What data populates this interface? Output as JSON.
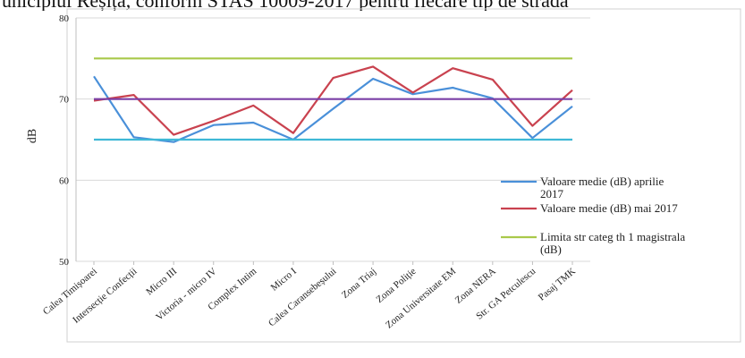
{
  "caption": "unicipiul Reșița, conform STAS 10009-2017 pentru fiecare tip de stradă",
  "chart_data": {
    "type": "line",
    "title": "",
    "xlabel": "",
    "ylabel": "dB",
    "ylim": [
      50,
      80
    ],
    "yticks": [
      "50",
      "60",
      "70",
      "80"
    ],
    "grid": "horizontal",
    "legend_position": "right",
    "categories": [
      "Calea Timișoarei",
      "Intersecție Confecții",
      "Micro III",
      "Victoria - micro IV",
      "Complex Intim",
      "Micro I",
      "Calea Caransebeșului",
      "Zona Triaj",
      "Zona Poliție",
      "Zona Universitate EM",
      "Zona NERA",
      "Str. GA Petculescu",
      "Pasaj TMK"
    ],
    "series": [
      {
        "name": "Valoare medie (dB) aprilie 2017",
        "legend_lines": [
          "Valoare medie (dB) aprilie",
          "2017"
        ],
        "color": "#4a90d9",
        "values": [
          72.8,
          65.3,
          64.7,
          66.8,
          67.1,
          65.0,
          68.8,
          72.5,
          70.6,
          71.4,
          70.1,
          65.2,
          69.1
        ]
      },
      {
        "name": "Valoare medie (dB) mai 2017",
        "legend_lines": [
          "Valoare medie (dB) mai 2017"
        ],
        "color": "#c9424f",
        "values": [
          69.8,
          70.5,
          65.6,
          67.3,
          69.2,
          65.8,
          72.6,
          74.0,
          70.8,
          73.8,
          72.4,
          66.7,
          71.1
        ]
      },
      {
        "name": "Limita str categ th 1 magistrala (dB)",
        "legend_lines": [
          "Limita str categ th 1 magistrala",
          "(dB)"
        ],
        "color": "#a9c94a",
        "values": [
          75,
          75,
          75,
          75,
          75,
          75,
          75,
          75,
          75,
          75,
          75,
          75,
          75
        ]
      },
      {
        "name": "",
        "color": "#7a3fa6",
        "values": [
          70,
          70,
          70,
          70,
          70,
          70,
          70,
          70,
          70,
          70,
          70,
          70,
          70
        ]
      },
      {
        "name": "",
        "color": "#3fb8d6",
        "values": [
          65,
          65,
          65,
          65,
          65,
          65,
          65,
          65,
          65,
          65,
          65,
          65,
          65
        ]
      }
    ]
  }
}
